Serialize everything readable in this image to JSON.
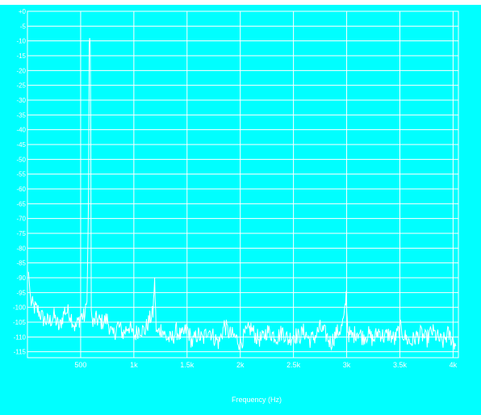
{
  "chart_data": {
    "type": "line",
    "title": "",
    "xlabel": "Frequency (Hz)",
    "ylabel": "",
    "xlim": [
      0,
      4050
    ],
    "ylim": [
      -117,
      0
    ],
    "grid": true,
    "colors": {
      "background": "#00ffff",
      "grid": "#ffffff",
      "trace": "#ffffff",
      "text": "#ffffff"
    },
    "y_ticks": [
      {
        "value": 0,
        "label": "+0"
      },
      {
        "value": -5,
        "label": "-5"
      },
      {
        "value": -10,
        "label": "-10"
      },
      {
        "value": -15,
        "label": "-15"
      },
      {
        "value": -20,
        "label": "-20"
      },
      {
        "value": -25,
        "label": "-25"
      },
      {
        "value": -30,
        "label": "-30"
      },
      {
        "value": -35,
        "label": "-35"
      },
      {
        "value": -40,
        "label": "-40"
      },
      {
        "value": -45,
        "label": "-45"
      },
      {
        "value": -50,
        "label": "-50"
      },
      {
        "value": -55,
        "label": "-55"
      },
      {
        "value": -60,
        "label": "-60"
      },
      {
        "value": -65,
        "label": "-65"
      },
      {
        "value": -70,
        "label": "-70"
      },
      {
        "value": -75,
        "label": "-75"
      },
      {
        "value": -80,
        "label": "-80"
      },
      {
        "value": -85,
        "label": "-85"
      },
      {
        "value": -90,
        "label": "-90"
      },
      {
        "value": -95,
        "label": "-95"
      },
      {
        "value": -100,
        "label": "-100"
      },
      {
        "value": -105,
        "label": "-105"
      },
      {
        "value": -110,
        "label": "-110"
      },
      {
        "value": -115,
        "label": "-115"
      }
    ],
    "x_ticks": [
      {
        "value": 500,
        "label": "500"
      },
      {
        "value": 1000,
        "label": "1k"
      },
      {
        "value": 1500,
        "label": "1.5k"
      },
      {
        "value": 2000,
        "label": "2k"
      },
      {
        "value": 2500,
        "label": "2.5k"
      },
      {
        "value": 3000,
        "label": "3k"
      },
      {
        "value": 3500,
        "label": "3.5k"
      },
      {
        "value": 4000,
        "label": "4k"
      }
    ],
    "series": [
      {
        "x": [
          10,
          30,
          60,
          100,
          150,
          200,
          250,
          300,
          350,
          400,
          450,
          500,
          540,
          560,
          575,
          580,
          585,
          590,
          595,
          600,
          605,
          615,
          640,
          700,
          750,
          800,
          850,
          900,
          950,
          1000,
          1050,
          1100,
          1150,
          1180,
          1190,
          1195,
          1200,
          1205,
          1210,
          1220,
          1260,
          1300,
          1350,
          1400,
          1450,
          1500,
          1550,
          1600,
          1650,
          1700,
          1750,
          1800,
          1850,
          1900,
          1950,
          2000,
          2050,
          2100,
          2150,
          2200,
          2250,
          2300,
          2350,
          2400,
          2450,
          2500,
          2550,
          2600,
          2650,
          2700,
          2750,
          2800,
          2850,
          2900,
          2950,
          2980,
          2990,
          2995,
          3000,
          3005,
          3010,
          3020,
          3050,
          3100,
          3150,
          3200,
          3250,
          3300,
          3350,
          3400,
          3450,
          3500,
          3550,
          3600,
          3650,
          3700,
          3750,
          3800,
          3850,
          3900,
          3950,
          4000,
          4030
        ],
        "y": [
          -88,
          -98,
          -100,
          -101,
          -104,
          -105,
          -103,
          -107,
          -101,
          -102,
          -107,
          -103,
          -103,
          -98,
          -60,
          -11,
          -9,
          -11,
          -40,
          -98,
          -104,
          -106,
          -104,
          -105,
          -104,
          -110,
          -106,
          -109,
          -106,
          -110,
          -107,
          -108,
          -104,
          -102,
          -95,
          -90,
          -96,
          -103,
          -107,
          -109,
          -107,
          -110,
          -111,
          -108,
          -110,
          -107,
          -112,
          -109,
          -111,
          -107,
          -110,
          -112,
          -106,
          -109,
          -110,
          -112,
          -109,
          -107,
          -110,
          -111,
          -108,
          -109,
          -110,
          -108,
          -111,
          -109,
          -110,
          -108,
          -111,
          -110,
          -107,
          -109,
          -112,
          -109,
          -107,
          -103,
          -98,
          -96,
          -99,
          -104,
          -107,
          -109,
          -110,
          -108,
          -110,
          -109,
          -111,
          -108,
          -110,
          -109,
          -111,
          -107,
          -110,
          -112,
          -110,
          -109,
          -111,
          -108,
          -110,
          -112,
          -109,
          -111,
          -113
        ]
      }
    ]
  }
}
